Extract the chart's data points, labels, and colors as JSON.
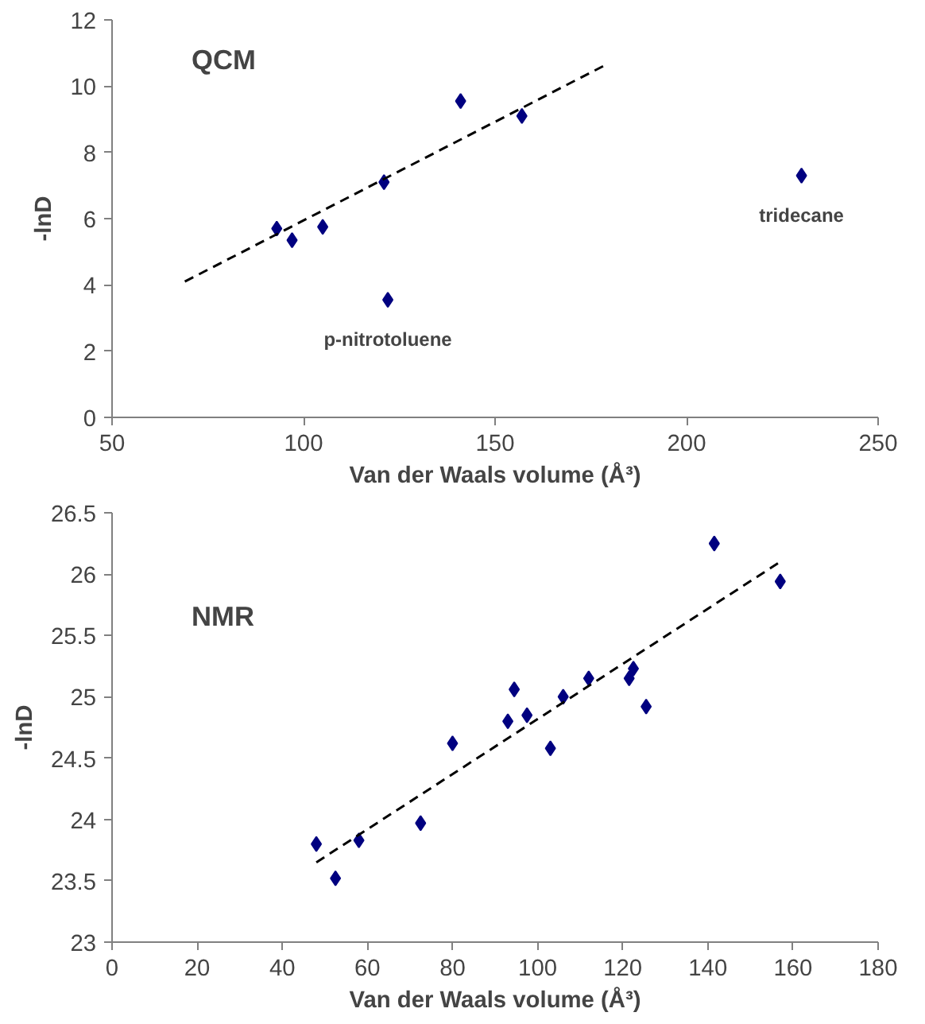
{
  "chart_data": [
    {
      "type": "scatter",
      "title": "QCM",
      "xlabel": "Van der Waals volume (Å³)",
      "ylabel": "-lnD",
      "xlim": [
        50,
        250
      ],
      "xticks": [
        50,
        100,
        150,
        200,
        250
      ],
      "ylim": [
        0,
        12
      ],
      "yticks": [
        0,
        2,
        4,
        6,
        8,
        10,
        12
      ],
      "marker": "diamond",
      "series": [
        {
          "color": "#000080",
          "x": [
            93,
            97,
            105,
            121,
            122,
            141,
            157,
            230
          ],
          "values": [
            5.7,
            5.35,
            5.75,
            7.1,
            3.55,
            9.55,
            9.1,
            7.3
          ]
        },
        {
          "type": "line",
          "color": "#000000",
          "line_style": "dashed",
          "marker": "none",
          "x": [
            69,
            179
          ],
          "values": [
            4.1,
            10.65
          ]
        }
      ],
      "annotations": [
        {
          "text": "p-nitrotoluene",
          "x": 122,
          "y": 3.55
        },
        {
          "text": "tridecane",
          "x": 230,
          "y": 7.3
        }
      ]
    },
    {
      "type": "scatter",
      "title": "NMR",
      "xlabel": "Van der Waals volume (Å³)",
      "ylabel": "-lnD",
      "xlim": [
        0,
        180
      ],
      "xticks": [
        0,
        20,
        40,
        60,
        80,
        100,
        120,
        140,
        160,
        180
      ],
      "ylim": [
        23,
        26.5
      ],
      "yticks": [
        23,
        23.5,
        24,
        24.5,
        25,
        25.5,
        26,
        26.5
      ],
      "marker": "diamond",
      "series": [
        {
          "color": "#000080",
          "x": [
            48,
            52.5,
            58,
            72.5,
            80,
            93,
            94.5,
            97.5,
            103,
            106,
            112,
            121.5,
            122.5,
            125.5,
            141.5,
            157
          ],
          "values": [
            23.8,
            23.52,
            23.83,
            23.97,
            24.62,
            24.8,
            25.06,
            24.85,
            24.58,
            25.0,
            25.15,
            25.15,
            25.23,
            24.92,
            26.25,
            25.94
          ]
        },
        {
          "type": "line",
          "color": "#000000",
          "line_style": "dashed",
          "marker": "none",
          "x": [
            48,
            157
          ],
          "values": [
            23.65,
            26.1
          ]
        }
      ]
    }
  ]
}
